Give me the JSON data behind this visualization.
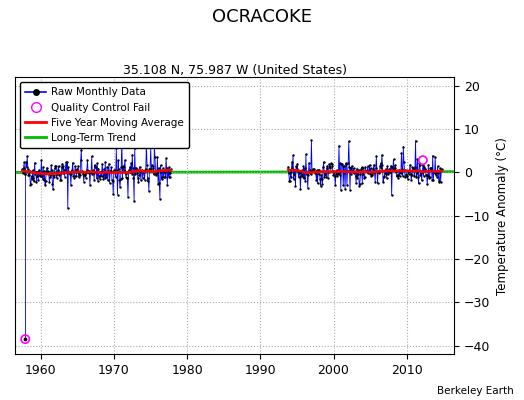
{
  "title": "OCRACOKE",
  "subtitle": "35.108 N, 75.987 W (United States)",
  "ylabel": "Temperature Anomaly (°C)",
  "attribution": "Berkeley Earth",
  "ylim": [
    -42,
    22
  ],
  "yticks": [
    -40,
    -30,
    -20,
    -10,
    0,
    10,
    20
  ],
  "xlim": [
    1956.5,
    2016.5
  ],
  "xticks": [
    1960,
    1970,
    1980,
    1990,
    2000,
    2010
  ],
  "bg_color": "#ffffff",
  "plot_bg_color": "#ffffff",
  "raw_line_color": "#0000ff",
  "raw_dot_color": "#000000",
  "ma_color": "#ff0000",
  "trend_color": "#00bb00",
  "qc_fail_color": "#ff00ff",
  "seed": 42,
  "start_year": 1957.5,
  "end_year": 2014.8,
  "gap_start": 1977.8,
  "gap_end": 1993.8,
  "outlier_x": 1957.9,
  "outlier_y": -38.5,
  "qc_fail_x": 2012.2,
  "qc_fail_y": 2.8,
  "trend_slope": 0.003,
  "trend_intercept": 0.05
}
